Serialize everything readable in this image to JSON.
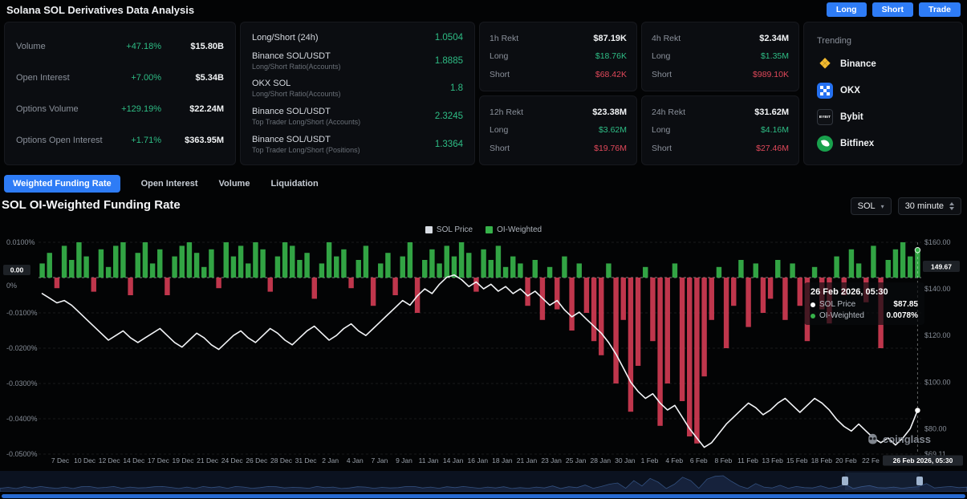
{
  "colors": {
    "accent_blue": "#2e7cf6",
    "green": "#2ebd85",
    "red": "#e0485a",
    "bar_green": "#36b24a",
    "bar_red": "#cf3b52",
    "price_line": "#f2f4f7"
  },
  "topbar": {
    "title": "Solana SOL Derivatives Data Analysis",
    "actions": [
      "Long",
      "Short",
      "Trade"
    ]
  },
  "stats_panel": {
    "rows": [
      {
        "label": "Volume",
        "change": "+47.18%",
        "value": "$15.80B"
      },
      {
        "label": "Open Interest",
        "change": "+7.00%",
        "value": "$5.34B"
      },
      {
        "label": "Options Volume",
        "change": "+129.19%",
        "value": "$22.24M"
      },
      {
        "label": "Options Open Interest",
        "change": "+1.71%",
        "value": "$363.95M"
      }
    ]
  },
  "ratio_panel": {
    "rows": [
      {
        "label": "Long/Short (24h)",
        "sublabel": "",
        "value": "1.0504"
      },
      {
        "label": "Binance SOL/USDT",
        "sublabel": "Long/Short Ratio(Accounts)",
        "value": "1.8885"
      },
      {
        "label": "OKX SOL",
        "sublabel": "Long/Short Ratio(Accounts)",
        "value": "1.8"
      },
      {
        "label": "Binance SOL/USDT",
        "sublabel": "Top Trader Long/Short (Accounts)",
        "value": "2.3245"
      },
      {
        "label": "Binance SOL/USDT",
        "sublabel": "Top Trader Long/Short (Positions)",
        "value": "1.3364"
      }
    ]
  },
  "rekt_panels": [
    {
      "label": "1h Rekt",
      "total": "$87.19K",
      "long_label": "Long",
      "long_value": "$18.76K",
      "short_label": "Short",
      "short_value": "$68.42K"
    },
    {
      "label": "4h Rekt",
      "total": "$2.34M",
      "long_label": "Long",
      "long_value": "$1.35M",
      "short_label": "Short",
      "short_value": "$989.10K"
    },
    {
      "label": "12h Rekt",
      "total": "$23.38M",
      "long_label": "Long",
      "long_value": "$3.62M",
      "short_label": "Short",
      "short_value": "$19.76M"
    },
    {
      "label": "24h Rekt",
      "total": "$31.62M",
      "long_label": "Long",
      "long_value": "$4.16M",
      "short_label": "Short",
      "short_value": "$27.46M"
    }
  ],
  "trending": {
    "title": "Trending",
    "items": [
      {
        "name": "Binance",
        "icon": "binance-icon"
      },
      {
        "name": "OKX",
        "icon": "okx-icon"
      },
      {
        "name": "Bybit",
        "icon": "bybit-icon",
        "icon_text": "BYBIT"
      },
      {
        "name": "Bitfinex",
        "icon": "bitfinex-icon"
      }
    ]
  },
  "tabs": [
    {
      "label": "Weighted Funding Rate",
      "active": true
    },
    {
      "label": "Open Interest",
      "active": false
    },
    {
      "label": "Volume",
      "active": false
    },
    {
      "label": "Liquidation",
      "active": false
    }
  ],
  "chart_header": {
    "title": "SOL OI-Weighted Funding Rate",
    "symbol_select": "SOL",
    "interval_select": "30 minute"
  },
  "legend": [
    {
      "label": "SOL Price",
      "color": "#d8dde4"
    },
    {
      "label": "OI-Weighted",
      "color": "#36b24a"
    }
  ],
  "tooltip": {
    "date": "26 Feb 2026, 05:30",
    "rows": [
      {
        "label": "SOL Price",
        "value": "$87.85",
        "dot": "#ffffff"
      },
      {
        "label": "OI-Weighted",
        "value": "0.0078%",
        "dot": "#36b24a"
      }
    ]
  },
  "watermark": "coinglass",
  "navigator": {
    "handles": [
      0.874,
      0.951
    ]
  },
  "chart_data": {
    "type": "mixed",
    "title": "SOL OI-Weighted Funding Rate",
    "series": [
      {
        "name": "OI-Weighted",
        "type": "bar",
        "unit": "%",
        "values": [
          0.004,
          0.007,
          -0.003,
          0.009,
          0.005,
          0.01,
          0.006,
          -0.004,
          0.008,
          0.003,
          0.009,
          0.01,
          -0.005,
          0.007,
          0.01,
          0.004,
          0.008,
          -0.005,
          0.006,
          0.009,
          0.01,
          0.007,
          0.003,
          0.008,
          -0.003,
          0.01,
          0.006,
          0.009,
          0.004,
          0.01,
          0.008,
          -0.004,
          0.006,
          0.01,
          0.009,
          0.005,
          0.007,
          -0.006,
          0.004,
          0.01,
          0.006,
          0.008,
          -0.003,
          0.005,
          0.009,
          -0.008,
          0.004,
          0.007,
          -0.005,
          0.006,
          0.01,
          -0.01,
          0.005,
          0.008,
          0.004,
          0.009,
          0.006,
          0.01,
          0.007,
          -0.004,
          0.008,
          0.005,
          0.009,
          0.003,
          0.006,
          0.004,
          -0.008,
          0.005,
          -0.012,
          0.003,
          -0.009,
          0.006,
          -0.015,
          0.004,
          -0.01,
          -0.018,
          -0.022,
          0.004,
          -0.03,
          -0.012,
          -0.038,
          -0.025,
          0.003,
          -0.018,
          -0.042,
          -0.03,
          0.004,
          -0.035,
          -0.045,
          -0.047,
          -0.028,
          -0.012,
          0.003,
          -0.02,
          -0.008,
          0.005,
          -0.014,
          0.004,
          -0.01,
          -0.006,
          0.005,
          -0.012,
          0.004,
          -0.008,
          -0.018,
          0.003,
          -0.009,
          -0.013,
          0.006,
          -0.005,
          0.008,
          0.004,
          -0.007,
          0.009,
          -0.02,
          0.005,
          0.008,
          0.01,
          0.006,
          0.0078
        ]
      },
      {
        "name": "SOL Price",
        "type": "line",
        "unit": "USD",
        "values": [
          138,
          136,
          134,
          135,
          133,
          130,
          127,
          124,
          121,
          118,
          120,
          122,
          119,
          117,
          119,
          121,
          123,
          120,
          117,
          115,
          118,
          121,
          119,
          116,
          114,
          117,
          120,
          122,
          119,
          117,
          120,
          123,
          121,
          118,
          116,
          119,
          122,
          124,
          121,
          118,
          120,
          123,
          125,
          122,
          120,
          123,
          126,
          129,
          132,
          135,
          133,
          137,
          140,
          138,
          142,
          145,
          146,
          144,
          141,
          143,
          140,
          142,
          139,
          141,
          138,
          140,
          137,
          139,
          136,
          133,
          135,
          131,
          128,
          130,
          127,
          124,
          121,
          117,
          112,
          106,
          100,
          96,
          93,
          95,
          91,
          88,
          90,
          85,
          80,
          76,
          72,
          74,
          78,
          82,
          85,
          88,
          91,
          89,
          86,
          88,
          91,
          93,
          90,
          87,
          90,
          93,
          91,
          88,
          84,
          81,
          79,
          82,
          79,
          76,
          74,
          76,
          73,
          76,
          80,
          87.85
        ]
      }
    ],
    "left_axis": {
      "range": [
        0.01,
        -0.05
      ],
      "tick_values": [
        0.01,
        0,
        -0.01,
        -0.02,
        -0.03,
        -0.04,
        -0.05
      ],
      "ticks": [
        "0.0100%",
        "0%",
        "-0.0100%",
        "-0.0200%",
        "-0.0300%",
        "-0.0400%",
        "-0.0500%"
      ],
      "current_tag": "0.00"
    },
    "right_axis": {
      "range": [
        160,
        69.11
      ],
      "tick_values": [
        160,
        140,
        120,
        100,
        80,
        69.11
      ],
      "ticks": [
        "$160.00",
        "$140.00",
        "$120.00",
        "$100.00",
        "$80.00",
        "$69.11"
      ],
      "current_tag": "149.67",
      "current_tag_value": 149.67
    },
    "x_ticks": [
      "7 Dec",
      "10 Dec",
      "12 Dec",
      "14 Dec",
      "17 Dec",
      "19 Dec",
      "21 Dec",
      "24 Dec",
      "26 Dec",
      "28 Dec",
      "31 Dec",
      "2 Jan",
      "4 Jan",
      "7 Jan",
      "9 Jan",
      "11 Jan",
      "14 Jan",
      "16 Jan",
      "18 Jan",
      "21 Jan",
      "23 Jan",
      "25 Jan",
      "28 Jan",
      "30 Jan",
      "1 Feb",
      "4 Feb",
      "6 Feb",
      "8 Feb",
      "11 Feb",
      "13 Feb",
      "15 Feb",
      "18 Feb",
      "20 Feb",
      "22 Fe"
    ],
    "x_end_tag": "26 Feb 2026, 05:30",
    "last": {
      "price": 87.85,
      "funding_pct": 0.0078
    }
  }
}
